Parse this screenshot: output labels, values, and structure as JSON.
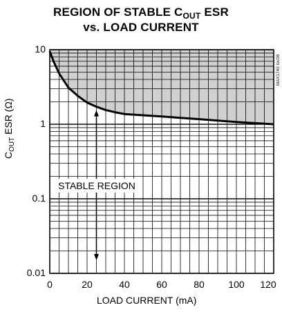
{
  "chart_data": {
    "type": "line",
    "title_line1_main": "REGION OF STABLE C",
    "title_line1_sub": "OUT",
    "title_line1_end": " ESR",
    "title_line2": "vs. LOAD CURRENT",
    "xlabel": "LOAD CURRENT (mA)",
    "ylabel_main": "C",
    "ylabel_sub": "OUT",
    "ylabel_end": " ESR (Ω)",
    "xlim": [
      0,
      120
    ],
    "ylim": [
      0.01,
      10
    ],
    "yscale": "log",
    "grid": true,
    "x_ticks": [
      {
        "value": 0,
        "label": "0"
      },
      {
        "value": 20,
        "label": "20"
      },
      {
        "value": 40,
        "label": "40"
      },
      {
        "value": 60,
        "label": "60"
      },
      {
        "value": 80,
        "label": "80"
      },
      {
        "value": 100,
        "label": "100"
      },
      {
        "value": 120,
        "label": "120"
      }
    ],
    "y_ticks": [
      {
        "value": 10,
        "label": "10"
      },
      {
        "value": 1,
        "label": "1"
      },
      {
        "value": 0.1,
        "label": "0.1"
      },
      {
        "value": 0.01,
        "label": "0.01"
      }
    ],
    "series": [
      {
        "x": [
          0,
          2,
          5,
          10,
          15,
          20,
          25,
          30,
          35,
          40,
          60,
          80,
          100,
          120
        ],
        "y": [
          9.5,
          7.0,
          4.8,
          3.1,
          2.4,
          1.95,
          1.72,
          1.55,
          1.45,
          1.37,
          1.27,
          1.17,
          1.07,
          1.0
        ]
      }
    ],
    "shaded_region": "above-curve",
    "shade_color": "#d0d0d0",
    "line_color": "#000000",
    "annotation": "STABLE REGION",
    "arrow": {
      "x": 25,
      "y_top": 1.55,
      "y_bottom": 0.015
    },
    "part_number": "MAX1740 toc08"
  }
}
